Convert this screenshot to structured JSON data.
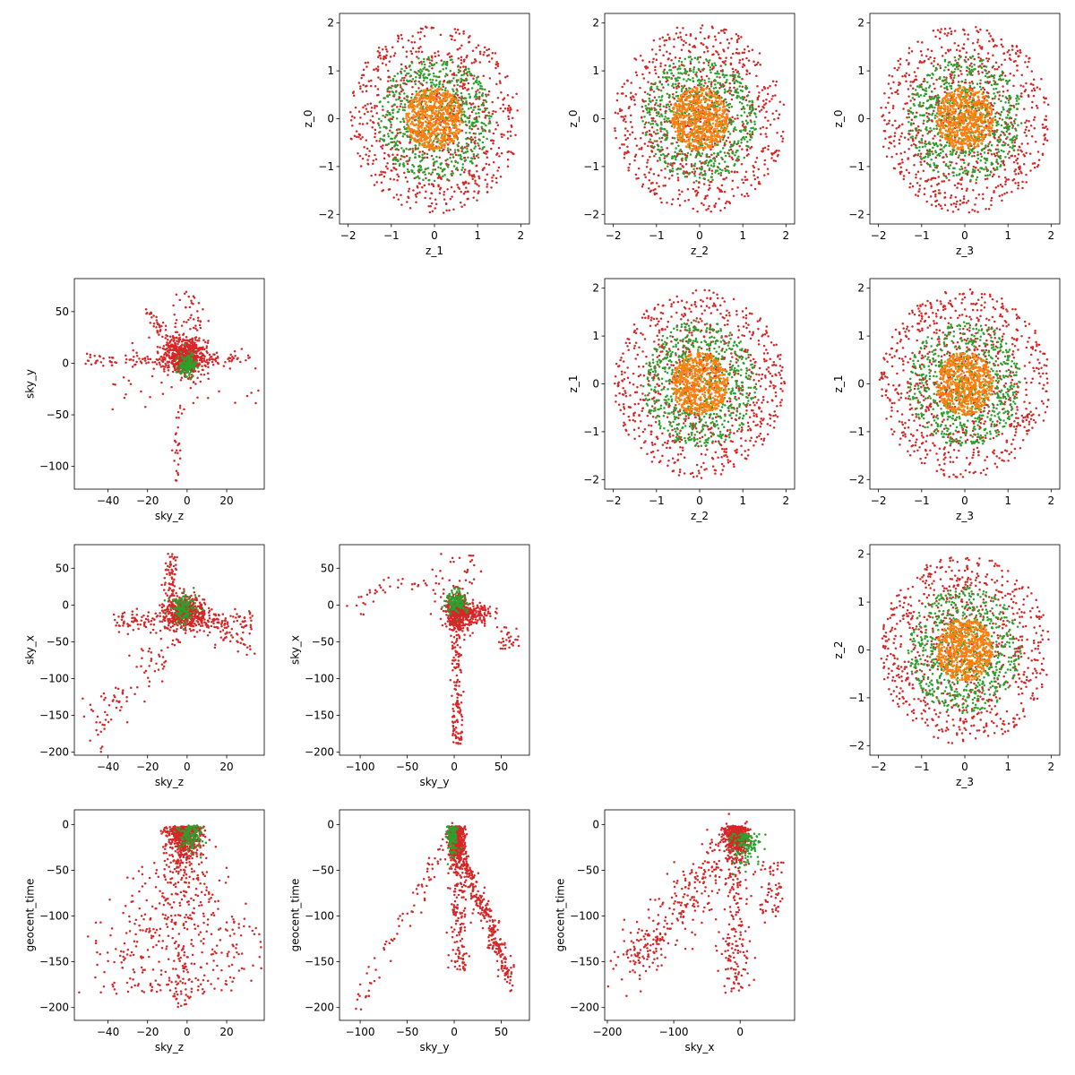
{
  "chart_data": {
    "type": "scatter",
    "layout": "lower-triangle corner plot (sky/time panels) with upper-triangle latent panels",
    "series": [
      {
        "name": "",
        "color": "#d62728"
      },
      {
        "name": "",
        "color": "#2ca02c"
      },
      {
        "name": "",
        "color": "#ff7f0e"
      }
    ],
    "panels": [
      {
        "id": "z1_z0",
        "xlabel": "z_1",
        "ylabel": "z_0",
        "xlim": [
          -2.2,
          2.2
        ],
        "ylim": [
          -2.2,
          2.2
        ],
        "xticks": [
          -2,
          -1,
          0,
          1,
          2
        ],
        "yticks": [
          -2,
          -1,
          0,
          1,
          2
        ],
        "pattern": "rings",
        "seed": 11
      },
      {
        "id": "z2_z0",
        "xlabel": "z_2",
        "ylabel": "z_0",
        "xlim": [
          -2.2,
          2.2
        ],
        "ylim": [
          -2.2,
          2.2
        ],
        "xticks": [
          -2,
          -1,
          0,
          1,
          2
        ],
        "yticks": [
          -2,
          -1,
          0,
          1,
          2
        ],
        "pattern": "rings",
        "seed": 12
      },
      {
        "id": "z3_z0",
        "xlabel": "z_3",
        "ylabel": "z_0",
        "xlim": [
          -2.2,
          2.2
        ],
        "ylim": [
          -2.2,
          2.2
        ],
        "xticks": [
          -2,
          -1,
          0,
          1,
          2
        ],
        "yticks": [
          -2,
          -1,
          0,
          1,
          2
        ],
        "pattern": "rings",
        "seed": 13
      },
      {
        "id": "skyz_skyy",
        "xlabel": "sky_z",
        "ylabel": "sky_y",
        "xlim": [
          -57,
          39
        ],
        "ylim": [
          -122,
          82
        ],
        "xticks": [
          -40,
          -20,
          0,
          20
        ],
        "yticks": [
          -100,
          -50,
          0,
          50
        ],
        "pattern": "skyz_skyy",
        "seed": 21
      },
      {
        "id": "z2_z1",
        "xlabel": "z_2",
        "ylabel": "z_1",
        "xlim": [
          -2.2,
          2.2
        ],
        "ylim": [
          -2.2,
          2.2
        ],
        "xticks": [
          -2,
          -1,
          0,
          1,
          2
        ],
        "yticks": [
          -2,
          -1,
          0,
          1,
          2
        ],
        "pattern": "rings",
        "seed": 22
      },
      {
        "id": "z3_z1",
        "xlabel": "z_3",
        "ylabel": "z_1",
        "xlim": [
          -2.2,
          2.2
        ],
        "ylim": [
          -2.2,
          2.2
        ],
        "xticks": [
          -2,
          -1,
          0,
          1,
          2
        ],
        "yticks": [
          -2,
          -1,
          0,
          1,
          2
        ],
        "pattern": "rings",
        "seed": 23
      },
      {
        "id": "skyz_skyx",
        "xlabel": "sky_z",
        "ylabel": "sky_x",
        "xlim": [
          -57,
          39
        ],
        "ylim": [
          -204,
          82
        ],
        "xticks": [
          -40,
          -20,
          0,
          20
        ],
        "yticks": [
          -200,
          -150,
          -100,
          -50,
          0,
          50
        ],
        "pattern": "skyz_skyx",
        "seed": 31
      },
      {
        "id": "skyy_skyx",
        "xlabel": "sky_y",
        "ylabel": "sky_x",
        "xlim": [
          -122,
          80
        ],
        "ylim": [
          -204,
          82
        ],
        "xticks": [
          -100,
          -50,
          0,
          50
        ],
        "yticks": [
          -200,
          -150,
          -100,
          -50,
          0,
          50
        ],
        "pattern": "skyy_skyx",
        "seed": 32
      },
      {
        "id": "z3_z2",
        "xlabel": "z_3",
        "ylabel": "z_2",
        "xlim": [
          -2.2,
          2.2
        ],
        "ylim": [
          -2.2,
          2.2
        ],
        "xticks": [
          -2,
          -1,
          0,
          1,
          2
        ],
        "yticks": [
          -2,
          -1,
          0,
          1,
          2
        ],
        "pattern": "rings",
        "seed": 33
      },
      {
        "id": "skyz_time",
        "xlabel": "sky_z",
        "ylabel": "geocent_time",
        "xlim": [
          -57,
          39
        ],
        "ylim": [
          -214,
          16
        ],
        "xticks": [
          -40,
          -20,
          0,
          20
        ],
        "yticks": [
          -200,
          -150,
          -100,
          -50,
          0
        ],
        "pattern": "skyz_time",
        "seed": 41
      },
      {
        "id": "skyy_time",
        "xlabel": "sky_y",
        "ylabel": "geocent_time",
        "xlim": [
          -122,
          80
        ],
        "ylim": [
          -214,
          16
        ],
        "xticks": [
          -100,
          -50,
          0,
          50
        ],
        "yticks": [
          -200,
          -150,
          -100,
          -50,
          0
        ],
        "pattern": "skyy_time",
        "seed": 42
      },
      {
        "id": "skyx_time",
        "xlabel": "sky_x",
        "ylabel": "geocent_time",
        "xlim": [
          -204,
          82
        ],
        "ylim": [
          -214,
          16
        ],
        "xticks": [
          -200,
          -100,
          0
        ],
        "yticks": [
          -200,
          -150,
          -100,
          -50,
          0
        ],
        "pattern": "skyx_time",
        "seed": 43
      }
    ]
  }
}
